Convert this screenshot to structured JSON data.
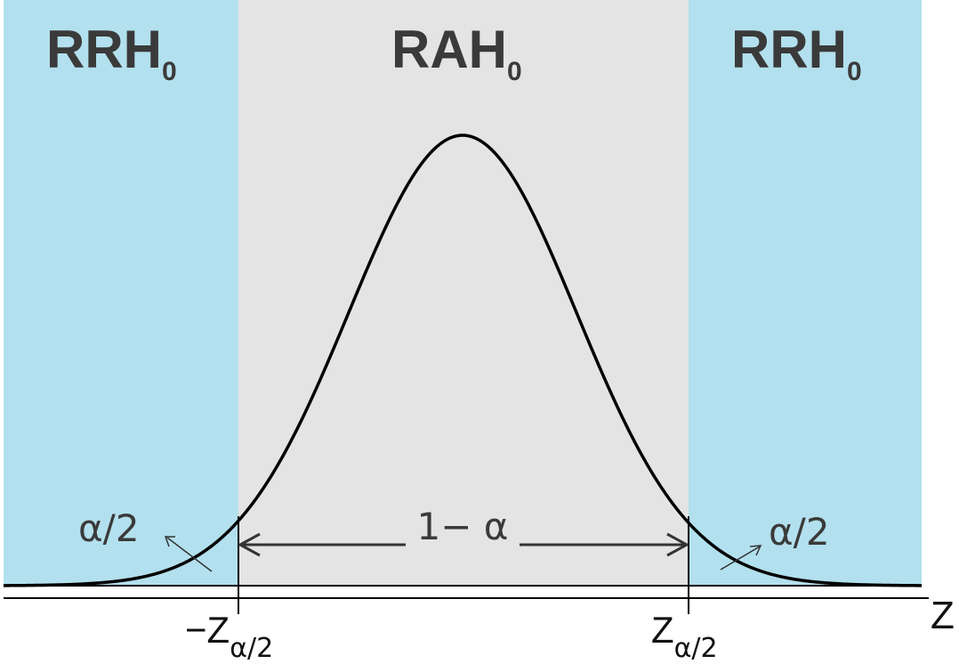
{
  "diagram": {
    "regions": {
      "left": {
        "main": "RRH",
        "sub": "0"
      },
      "center": {
        "main": "RAH",
        "sub": "0"
      },
      "right": {
        "main": "RRH",
        "sub": "0"
      }
    },
    "annotations": {
      "left_tail": "α/2",
      "center_area": "1− α",
      "right_tail": "α/2"
    },
    "axis": {
      "label": "Z",
      "left_critical": {
        "main": "−Z",
        "sub": "α/2"
      },
      "right_critical": {
        "main": "Z",
        "sub": "α/2"
      }
    },
    "colors": {
      "rejection_region": "#b3e0ee",
      "acceptance_region": "#e4e4e4",
      "curve": "#000000",
      "text": "#3a3a3a"
    }
  }
}
